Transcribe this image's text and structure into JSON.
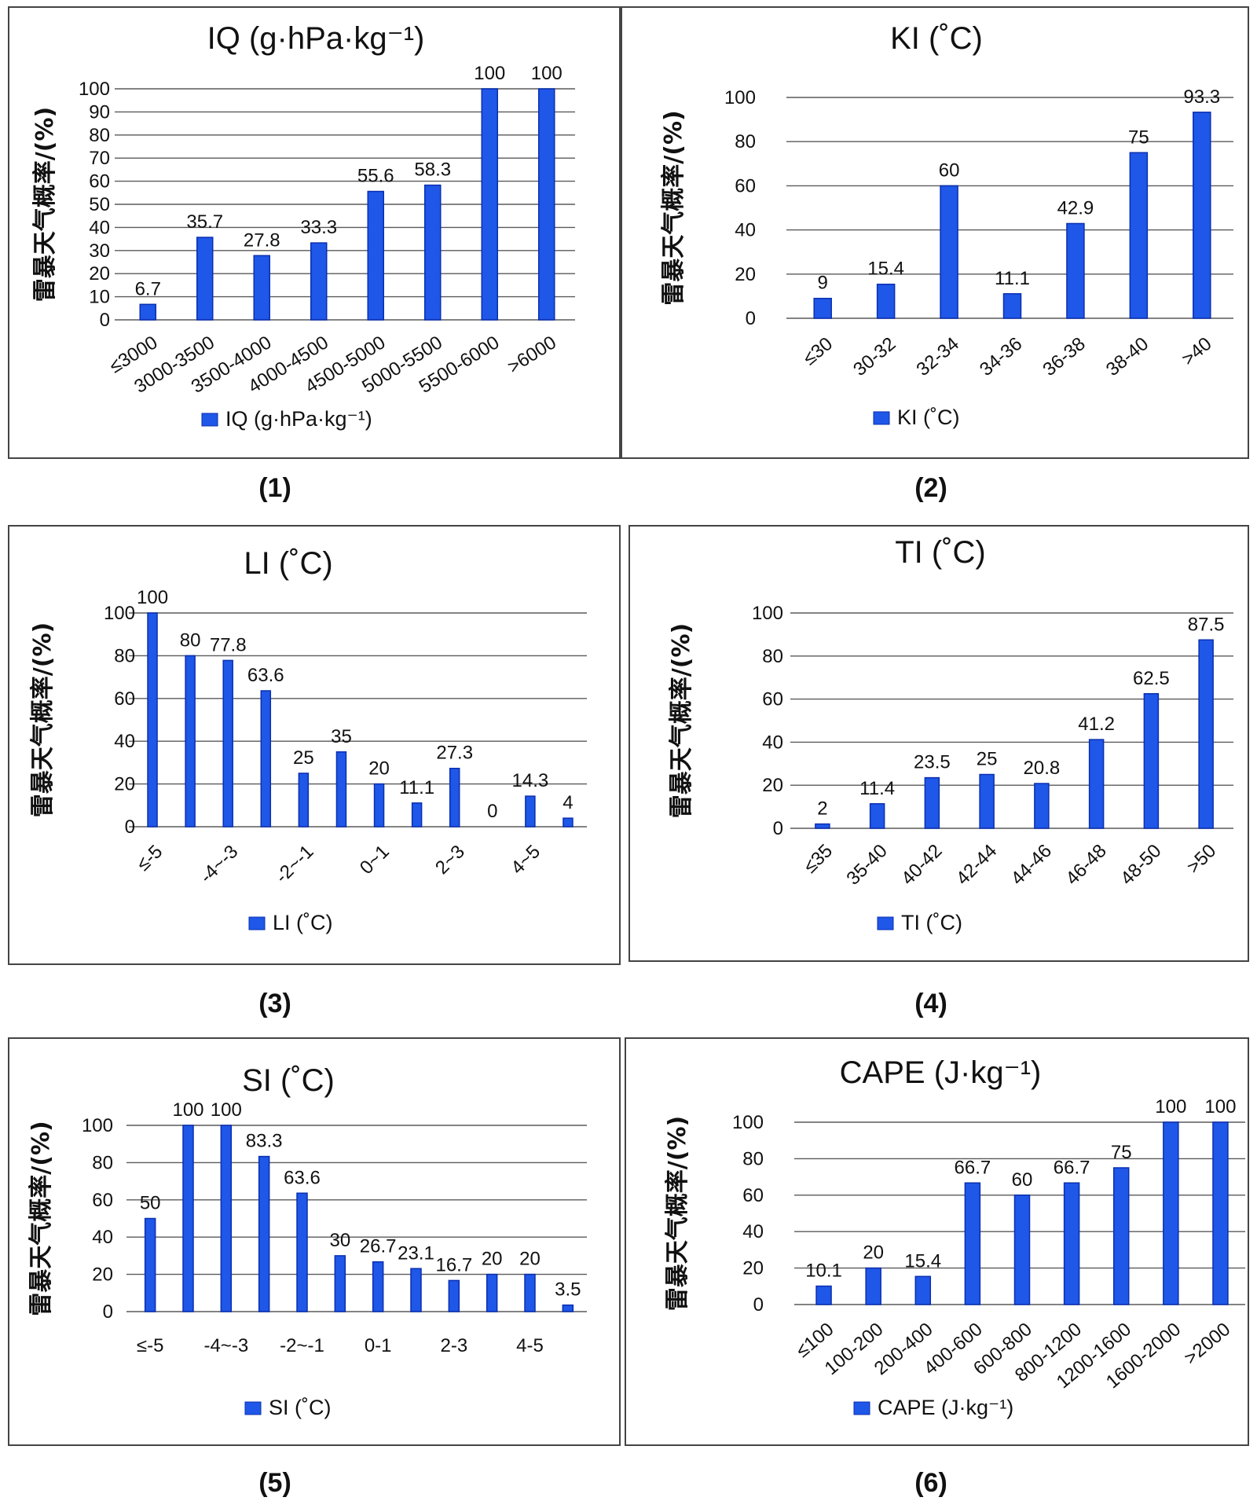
{
  "y_axis_label": "雷暴天气概率/(%)",
  "colors": {
    "bar": "#1f57e8",
    "bar_dark": "#0a2fb0",
    "grid": "#5a5a5a",
    "border": "#444444"
  },
  "chart_data": [
    {
      "id": "iq",
      "caption": "(1)",
      "type": "bar",
      "title": "IQ (g·hPa·kg⁻¹)",
      "legend": "IQ (g·hPa·kg⁻¹)",
      "ylabel": "雷暴天气概率/(%)",
      "xlabel": "",
      "ylim": [
        0,
        100
      ],
      "yticks": [
        0,
        10,
        20,
        30,
        40,
        50,
        60,
        70,
        80,
        90,
        100
      ],
      "categories": [
        "≤3000",
        "3000-3500",
        "3500-4000",
        "4000-4500",
        "4500-5000",
        "5000-5500",
        "5500-6000",
        ">6000"
      ],
      "values": [
        6.7,
        35.7,
        27.8,
        33.3,
        55.6,
        58.3,
        100,
        100
      ],
      "labels": [
        "6.7",
        "35.7",
        "27.8",
        "33.3",
        "55.6",
        "58.3",
        "100",
        "100"
      ],
      "grid": true,
      "legend_position": "bottom"
    },
    {
      "id": "ki",
      "caption": "(2)",
      "type": "bar",
      "title": "KI (˚C)",
      "legend": "KI (˚C)",
      "ylabel": "雷暴天气概率/(%)",
      "xlabel": "",
      "ylim": [
        0,
        100
      ],
      "yticks": [
        0,
        20,
        40,
        60,
        80,
        100
      ],
      "categories": [
        "≤30",
        "30-32",
        "32-34",
        "34-36",
        "36-38",
        "38-40",
        ">40"
      ],
      "values": [
        9,
        15.4,
        60,
        11.1,
        42.9,
        75,
        93.3
      ],
      "labels": [
        "9",
        "15.4",
        "60",
        "11.1",
        "42.9",
        "75",
        "93.3"
      ],
      "grid": true,
      "legend_position": "bottom"
    },
    {
      "id": "li",
      "caption": "(3)",
      "type": "bar",
      "title": "LI (˚C)",
      "legend": "LI (˚C)",
      "ylabel": "雷暴天气概率/(%)",
      "xlabel": "",
      "ylim": [
        0,
        100
      ],
      "yticks": [
        0,
        20,
        40,
        60,
        80,
        100
      ],
      "categories": [
        "≤-5",
        "-4~-3",
        "-2~-1",
        "0~1",
        "2~3",
        "4~5"
      ],
      "values": [
        100,
        80,
        77.8,
        63.6,
        25,
        35,
        20,
        11.1,
        27.3,
        0,
        14.3,
        4
      ],
      "labels": [
        "100",
        "80",
        "77.8",
        "63.6",
        "25",
        "35",
        "20",
        "11.1",
        "27.3",
        "0",
        "14.3",
        "4"
      ],
      "grid": true,
      "legend_position": "bottom"
    },
    {
      "id": "ti",
      "caption": "(4)",
      "type": "bar",
      "title": "TI (˚C)",
      "legend": "TI (˚C)",
      "ylabel": "雷暴天气概率/(%)",
      "xlabel": "",
      "ylim": [
        0,
        100
      ],
      "yticks": [
        0,
        20,
        40,
        60,
        80,
        100
      ],
      "categories": [
        "≤35",
        "35-40",
        "40-42",
        "42-44",
        "44-46",
        "46-48",
        "48-50",
        ">50"
      ],
      "values": [
        2,
        11.4,
        23.5,
        25,
        20.8,
        41.2,
        62.5,
        87.5
      ],
      "labels": [
        "2",
        "11.4",
        "23.5",
        "25",
        "20.8",
        "41.2",
        "62.5",
        "87.5"
      ],
      "grid": true,
      "legend_position": "bottom"
    },
    {
      "id": "si",
      "caption": "(5)",
      "type": "bar",
      "title": "SI (˚C)",
      "legend": "SI (˚C)",
      "ylabel": "雷暴天气概率/(%)",
      "xlabel": "",
      "ylim": [
        0,
        100
      ],
      "yticks": [
        0,
        20,
        40,
        60,
        80,
        100
      ],
      "categories": [
        "≤-5",
        "-4~-3",
        "-2~-1",
        "0-1",
        "2-3",
        "4-5"
      ],
      "values": [
        50,
        100,
        100,
        83.3,
        63.6,
        30,
        26.7,
        23.1,
        16.7,
        20,
        20,
        3.5
      ],
      "labels": [
        "50",
        "100",
        "100",
        "83.3",
        "63.6",
        "30",
        "26.7",
        "23.1",
        "16.7",
        "20",
        "20",
        "3.5"
      ],
      "grid": true,
      "legend_position": "bottom"
    },
    {
      "id": "cape",
      "caption": "(6)",
      "type": "bar",
      "title": "CAPE (J·kg⁻¹)",
      "legend": "CAPE (J·kg⁻¹)",
      "ylabel": "雷暴天气概率/(%)",
      "xlabel": "",
      "ylim": [
        0,
        100
      ],
      "yticks": [
        0,
        20,
        40,
        60,
        80,
        100
      ],
      "categories": [
        "≤100",
        "100-200",
        "200-400",
        "400-600",
        "600-800",
        "800-1200",
        "1200-1600",
        "1600-2000",
        ">2000"
      ],
      "values": [
        10.1,
        20,
        15.4,
        66.7,
        60,
        66.7,
        75,
        100,
        100
      ],
      "labels": [
        "10.1",
        "20",
        "15.4",
        "66.7",
        "60",
        "66.7",
        "75",
        "100",
        "100"
      ],
      "grid": true,
      "legend_position": "bottom"
    }
  ]
}
